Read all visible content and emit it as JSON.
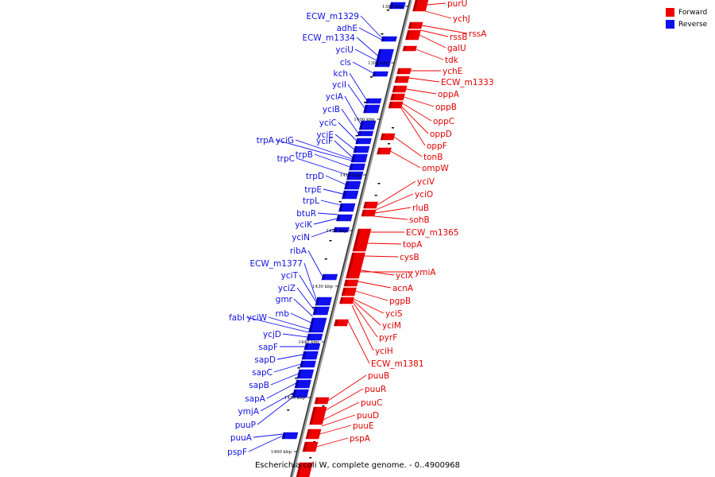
{
  "legend": {
    "forward_label": "Forward",
    "reverse_label": "Reverse",
    "forward_color": "#ee0000",
    "reverse_color": "#1010ee"
  },
  "caption": "Escherichia coli W, complete genome. - 0..4900968",
  "ticks": [
    "1380 kbp",
    "1390 kbp",
    "1400 kbp",
    "1410 kbp",
    "1420 kbp",
    "1430 kbp",
    "1440 kbp",
    "1450 kbp",
    "1460 kbp"
  ],
  "reverse_genes": [
    "ECW_m1329",
    "adhE",
    "ECW_m1334",
    "yciU",
    "cls",
    "kch",
    "yciI",
    "yciA",
    "yciB",
    "yciC",
    "yciE",
    "trpA",
    "yciG",
    "yciF",
    "trpB",
    "trpC",
    "trpD",
    "trpE",
    "trpL",
    "btuR",
    "yciK",
    "yciN",
    "ribA",
    "ECW_m1377",
    "yciT",
    "yciZ",
    "gmr",
    "rnb",
    "fabI",
    "yciW",
    "ycjD",
    "sapF",
    "sapD",
    "sapC",
    "sapB",
    "sapA",
    "ymjA",
    "puuP",
    "puuA",
    "pspF"
  ],
  "forward_genes": [
    "purU",
    "ychJ",
    "rssA",
    "rssB",
    "galU",
    "tdk",
    "ychE",
    "ECW_m1333",
    "oppA",
    "oppB",
    "oppC",
    "oppD",
    "oppF",
    "tonB",
    "ompW",
    "yciV",
    "yciO",
    "rluB",
    "sohB",
    "ECW_m1365",
    "topA",
    "cysB",
    "yciX",
    "ymiA",
    "acnA",
    "pgpB",
    "yciS",
    "yciM",
    "pyrF",
    "yciH",
    "ECW_m1381",
    "puuB",
    "puuR",
    "puuC",
    "puuD",
    "puuE",
    "pspA"
  ]
}
